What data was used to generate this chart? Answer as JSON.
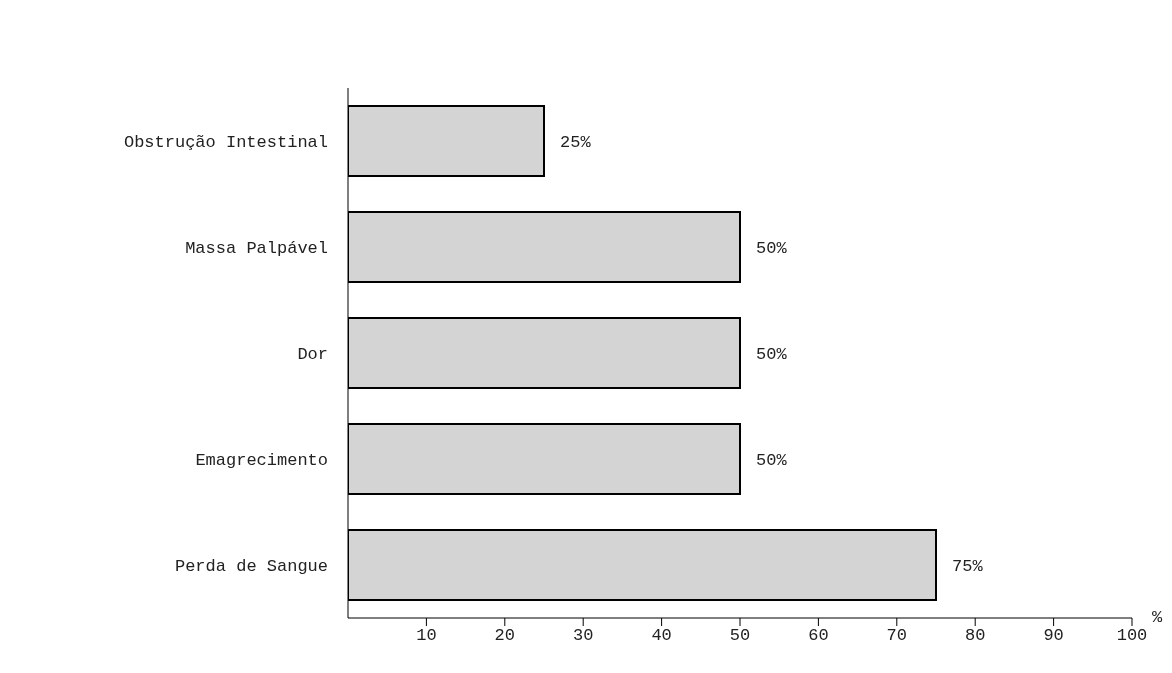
{
  "chart_data": {
    "type": "bar",
    "orientation": "horizontal",
    "categories": [
      "Obstrução Intestinal",
      "Massa Palpável",
      "Dor",
      "Emagrecimento",
      "Perda de Sangue"
    ],
    "values": [
      25,
      50,
      50,
      50,
      75
    ],
    "value_labels": [
      "25%",
      "50%",
      "50%",
      "50%",
      "75%"
    ],
    "color": "#d4d4d4",
    "xlim": [
      0,
      100
    ],
    "xticks": [
      10,
      20,
      30,
      40,
      50,
      60,
      70,
      80,
      90,
      100
    ],
    "xlabel": "%"
  }
}
